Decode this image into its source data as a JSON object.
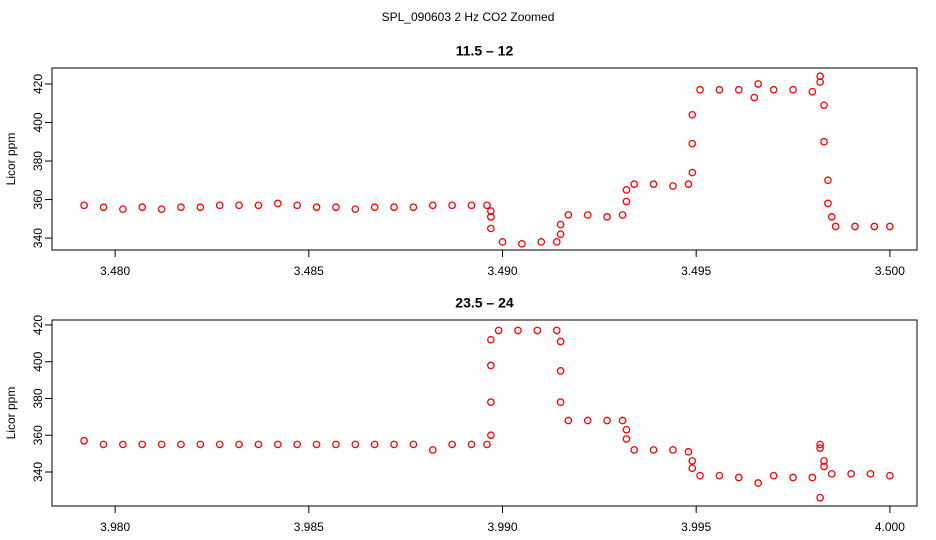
{
  "title": "SPL_090603  2 Hz CO2 Zoomed",
  "chart_data": [
    {
      "type": "scatter",
      "title": "11.5 – 12",
      "ylabel": "Licor ppm",
      "color": "#ff0000",
      "xlim": [
        3.47837,
        3.5007
      ],
      "ylim": [
        333.8,
        428.3
      ],
      "xticks": [
        {
          "value": 3.48,
          "label": "3.480"
        },
        {
          "value": 3.485,
          "label": "3.485"
        },
        {
          "value": 3.49,
          "label": "3.490"
        },
        {
          "value": 3.495,
          "label": "3.495"
        },
        {
          "value": 3.5,
          "label": "3.500"
        }
      ],
      "yticks": [
        340,
        360,
        380,
        400,
        420
      ],
      "x": [
        3.4792,
        3.4797,
        3.4802,
        3.4807,
        3.4812,
        3.4817,
        3.4822,
        3.4827,
        3.4832,
        3.4837,
        3.4842,
        3.4847,
        3.4852,
        3.4857,
        3.4862,
        3.4867,
        3.4872,
        3.4877,
        3.4882,
        3.4887,
        3.4892,
        3.4896,
        3.4897,
        3.4897,
        3.4897,
        3.49,
        3.4905,
        3.491,
        3.4914,
        3.4915,
        3.4915,
        3.4917,
        3.4922,
        3.4927,
        3.4931,
        3.4932,
        3.4932,
        3.4934,
        3.4939,
        3.4944,
        3.4948,
        3.4949,
        3.4949,
        3.4949,
        3.4951,
        3.4956,
        3.4961,
        3.4965,
        3.4966,
        3.497,
        3.4975,
        3.498,
        3.4982,
        3.4982,
        3.4983,
        3.4983,
        3.4984,
        3.4984,
        3.4985,
        3.4986,
        3.4991,
        3.4996,
        3.5
      ],
      "values": [
        357,
        356,
        355,
        356,
        355,
        356,
        356,
        357,
        357,
        357,
        358,
        357,
        356,
        356,
        355,
        356,
        356,
        356,
        357,
        357,
        357,
        357,
        354,
        351,
        345,
        338,
        337,
        338,
        338,
        342,
        347,
        352,
        352,
        351,
        352,
        359,
        365,
        368,
        368,
        367,
        368,
        374,
        389,
        404,
        417,
        417,
        417,
        413,
        420,
        417,
        417,
        416,
        424,
        421,
        409,
        390,
        370,
        358,
        351,
        346,
        346,
        346,
        346
      ]
    },
    {
      "type": "scatter",
      "title": "23.5 – 24",
      "ylabel": "Licor ppm",
      "color": "#ff0000",
      "xlim": [
        3.97837,
        4.0007
      ],
      "ylim": [
        321.5,
        422.7
      ],
      "xticks": [
        {
          "value": 3.98,
          "label": "3.980"
        },
        {
          "value": 3.985,
          "label": "3.985"
        },
        {
          "value": 3.99,
          "label": "3.990"
        },
        {
          "value": 3.995,
          "label": "3.995"
        },
        {
          "value": 4.0,
          "label": "4.000"
        }
      ],
      "yticks": [
        340,
        360,
        380,
        400,
        420
      ],
      "x": [
        3.9792,
        3.9797,
        3.9802,
        3.9807,
        3.9812,
        3.9817,
        3.9822,
        3.9827,
        3.9832,
        3.9837,
        3.9842,
        3.9847,
        3.9852,
        3.9857,
        3.9862,
        3.9867,
        3.9872,
        3.9877,
        3.9882,
        3.9887,
        3.9892,
        3.9896,
        3.9897,
        3.9897,
        3.9897,
        3.9897,
        3.9899,
        3.9904,
        3.9909,
        3.9914,
        3.9915,
        3.9915,
        3.9915,
        3.9917,
        3.9922,
        3.9927,
        3.9931,
        3.9932,
        3.9932,
        3.9934,
        3.9939,
        3.9944,
        3.9948,
        3.9949,
        3.9949,
        3.9951,
        3.9956,
        3.9961,
        3.9966,
        3.997,
        3.9975,
        3.998,
        3.9982,
        3.9982,
        3.9982,
        3.9983,
        3.9983,
        3.9985,
        3.999,
        3.9995,
        4.0
      ],
      "values": [
        357,
        355,
        355,
        355,
        355,
        355,
        355,
        355,
        355,
        355,
        355,
        355,
        355,
        355,
        355,
        355,
        355,
        355,
        352,
        355,
        355,
        355,
        360,
        378,
        398,
        412,
        417,
        417,
        417,
        417,
        411,
        395,
        378,
        368,
        368,
        368,
        368,
        363,
        358,
        352,
        352,
        352,
        351,
        346,
        342,
        338,
        338,
        337,
        334,
        338,
        337,
        337,
        326,
        355,
        353,
        346,
        343,
        339,
        339,
        339,
        338
      ]
    }
  ]
}
